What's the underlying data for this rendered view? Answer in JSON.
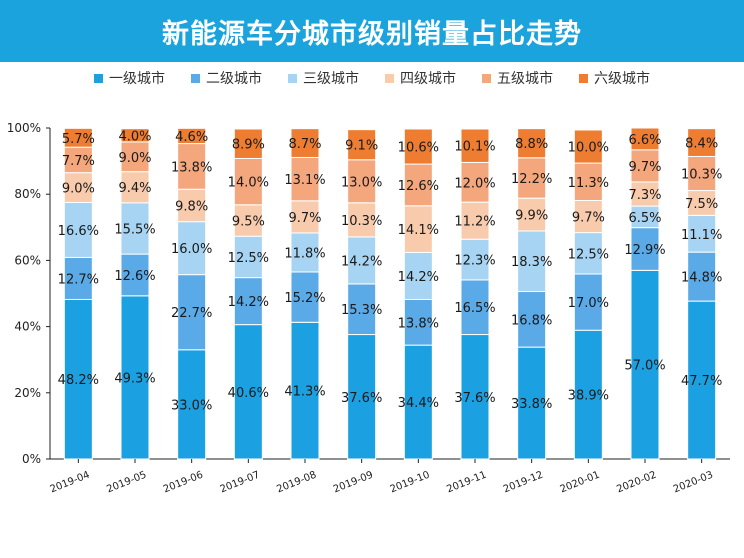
{
  "title": "新能源车分城市级别销量占比走势",
  "colors": [
    "#1ba1e2",
    "#5aaae8",
    "#a6d4f2",
    "#f8cbad",
    "#f4a67c",
    "#ee7d31"
  ],
  "chart_data": {
    "type": "bar",
    "stacked": true,
    "title": "新能源车分城市级别销量占比走势",
    "categories": [
      "2019-04",
      "2019-05",
      "2019-06",
      "2019-07",
      "2019-08",
      "2019-09",
      "2019-10",
      "2019-11",
      "2019-12",
      "2020-01",
      "2020-02",
      "2020-03"
    ],
    "series": [
      {
        "name": "一级城市",
        "values": [
          48.2,
          49.3,
          33.0,
          40.6,
          41.3,
          37.6,
          34.4,
          37.6,
          33.8,
          38.9,
          57.0,
          47.7
        ],
        "labels": [
          "48.2%",
          "49.3%",
          "33.0%",
          "40.6%",
          "41.3%",
          "37.6%",
          "34.4%",
          "37.6%",
          "33.8%",
          "38.9%",
          "57.0%",
          "47.7%"
        ]
      },
      {
        "name": "二级城市",
        "values": [
          12.7,
          12.6,
          22.7,
          14.2,
          15.2,
          15.3,
          13.8,
          16.5,
          16.8,
          17.0,
          12.9,
          14.8
        ],
        "labels": [
          "12.7%",
          "12.6%",
          "22.7%",
          "14.2%",
          "15.2%",
          "15.3%",
          "13.8%",
          "16.5%",
          "16.8%",
          "17.0%",
          "12.9%",
          "14.8%"
        ]
      },
      {
        "name": "三级城市",
        "values": [
          16.6,
          15.5,
          16.0,
          12.5,
          11.8,
          14.2,
          14.2,
          12.3,
          18.3,
          12.5,
          6.5,
          11.1
        ],
        "labels": [
          "16.6%",
          "15.5%",
          "16.0%",
          "12.5%",
          "11.8%",
          "14.2%",
          "14.2%",
          "12.3%",
          "18.3%",
          "12.5%",
          "6.5%",
          "11.1%"
        ]
      },
      {
        "name": "四级城市",
        "values": [
          9.0,
          9.4,
          9.8,
          9.5,
          9.7,
          10.3,
          14.1,
          11.2,
          9.9,
          9.7,
          7.3,
          7.5
        ],
        "labels": [
          "9.0%",
          "9.4%",
          "9.8%",
          "9.5%",
          "9.7%",
          "10.3%",
          "14.1%",
          "11.2%",
          "9.9%",
          "9.7%",
          "7.3%",
          "7.5%"
        ]
      },
      {
        "name": "五级城市",
        "values": [
          7.7,
          9.0,
          13.8,
          14.0,
          13.1,
          13.0,
          12.6,
          12.0,
          12.2,
          11.3,
          9.7,
          10.3
        ],
        "labels": [
          "7.7%",
          "9.0%",
          "13.8%",
          "14.0%",
          "13.1%",
          "13.0%",
          "12.6%",
          "12.0%",
          "12.2%",
          "11.3%",
          "9.7%",
          "10.3%"
        ]
      },
      {
        "name": "六级城市",
        "values": [
          5.7,
          4.0,
          4.6,
          8.9,
          8.7,
          9.1,
          10.6,
          10.1,
          8.8,
          10.0,
          6.6,
          8.4
        ],
        "labels": [
          "5.7%",
          "4.0%",
          "4.6%",
          "8.9%",
          "8.7%",
          "9.1%",
          "10.6%",
          "10.1%",
          "8.8%",
          "10.0%",
          "6.6%",
          "8.4%"
        ]
      }
    ],
    "ylim": [
      0,
      100
    ],
    "yticks": [
      "0%",
      "20%",
      "40%",
      "60%",
      "80%",
      "100%"
    ],
    "legend_position": "top",
    "grid": false
  }
}
